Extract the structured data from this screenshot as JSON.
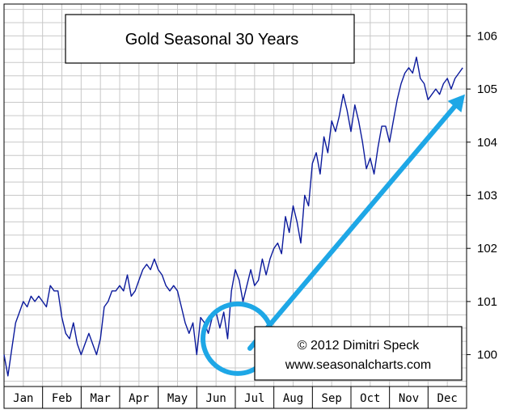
{
  "chart_data": {
    "type": "line",
    "title": "Gold Seasonal 30 Years",
    "xlabel": "",
    "ylabel": "",
    "categories": [
      "Jan",
      "Feb",
      "Mar",
      "Apr",
      "May",
      "Jun",
      "Jul",
      "Aug",
      "Sep",
      "Oct",
      "Nov",
      "Dec"
    ],
    "yticks": [
      100,
      101,
      102,
      103,
      104,
      105,
      106
    ],
    "xlim": [
      0,
      12
    ],
    "ylim": [
      99.4,
      106.6
    ],
    "grid": true,
    "series": [
      {
        "name": "",
        "color": "#0b1a9c",
        "x": [
          0.0,
          0.1,
          0.2,
          0.3,
          0.4,
          0.5,
          0.6,
          0.7,
          0.8,
          0.9,
          1.0,
          1.1,
          1.2,
          1.3,
          1.4,
          1.5,
          1.6,
          1.7,
          1.8,
          1.9,
          2.0,
          2.1,
          2.2,
          2.3,
          2.4,
          2.5,
          2.6,
          2.7,
          2.8,
          2.9,
          3.0,
          3.1,
          3.2,
          3.3,
          3.4,
          3.5,
          3.6,
          3.7,
          3.8,
          3.9,
          4.0,
          4.1,
          4.2,
          4.3,
          4.4,
          4.5,
          4.6,
          4.7,
          4.8,
          4.9,
          5.0,
          5.1,
          5.2,
          5.3,
          5.4,
          5.5,
          5.6,
          5.7,
          5.8,
          5.9,
          6.0,
          6.1,
          6.2,
          6.3,
          6.4,
          6.5,
          6.6,
          6.7,
          6.8,
          6.9,
          7.0,
          7.1,
          7.2,
          7.3,
          7.4,
          7.5,
          7.6,
          7.7,
          7.8,
          7.9,
          8.0,
          8.1,
          8.2,
          8.3,
          8.4,
          8.5,
          8.6,
          8.7,
          8.8,
          8.9,
          9.0,
          9.1,
          9.2,
          9.3,
          9.4,
          9.5,
          9.6,
          9.7,
          9.8,
          9.9,
          10.0,
          10.1,
          10.2,
          10.3,
          10.4,
          10.5,
          10.6,
          10.7,
          10.8,
          10.9,
          11.0,
          11.1,
          11.2,
          11.3,
          11.4,
          11.5,
          11.6,
          11.7,
          11.8,
          11.9
        ],
        "values": [
          100.0,
          99.6,
          100.1,
          100.6,
          100.8,
          101.0,
          100.9,
          101.1,
          101.0,
          101.1,
          101.0,
          100.9,
          101.3,
          101.2,
          101.2,
          100.7,
          100.4,
          100.3,
          100.6,
          100.2,
          100.0,
          100.2,
          100.4,
          100.2,
          100.0,
          100.3,
          100.9,
          101.0,
          101.2,
          101.2,
          101.3,
          101.2,
          101.5,
          101.1,
          101.2,
          101.4,
          101.6,
          101.7,
          101.6,
          101.8,
          101.6,
          101.5,
          101.3,
          101.2,
          101.3,
          101.2,
          100.9,
          100.6,
          100.4,
          100.6,
          100.0,
          100.7,
          100.6,
          100.4,
          100.7,
          100.8,
          100.5,
          100.8,
          100.3,
          101.2,
          101.6,
          101.4,
          101.0,
          101.3,
          101.6,
          101.3,
          101.4,
          101.8,
          101.5,
          101.8,
          102.0,
          102.1,
          101.9,
          102.6,
          102.3,
          102.8,
          102.5,
          102.1,
          103.0,
          102.8,
          103.6,
          103.8,
          103.4,
          104.1,
          103.8,
          104.4,
          104.2,
          104.5,
          104.9,
          104.6,
          104.2,
          104.7,
          104.4,
          104.0,
          103.5,
          103.7,
          103.4,
          103.9,
          104.3,
          104.3,
          104.0,
          104.4,
          104.8,
          105.1,
          105.3,
          105.4,
          105.3,
          105.6,
          105.2,
          105.1,
          104.8,
          104.9,
          105.0,
          104.9,
          105.1,
          105.2,
          105.0,
          105.2,
          105.3,
          105.4
        ]
      }
    ],
    "annotations": {
      "credit_line1": "© 2012  Dimitri Speck",
      "credit_line2": "www.seasonalcharts.com",
      "highlight_color": "#1ea7e6",
      "highlight_month": "Jul"
    }
  }
}
